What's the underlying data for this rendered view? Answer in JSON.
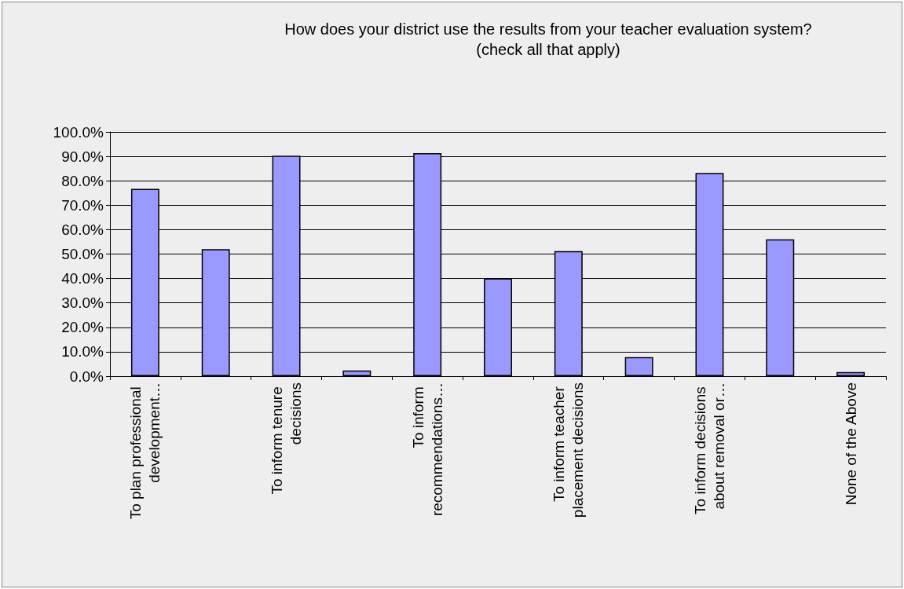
{
  "chart_data": {
    "type": "bar",
    "title": "How does your district use the results from your teacher evaluation system?\n(check all that apply)",
    "categories": [
      "To plan professional development…",
      null,
      "To inform tenure decisions",
      null,
      "To inform recommendations…",
      null,
      "To inform teacher placement decisions",
      null,
      "To inform decisions about removal or…",
      null,
      "None of the Above"
    ],
    "values": [
      76.7,
      52.0,
      90.3,
      2.3,
      91.3,
      40.0,
      51.2,
      7.8,
      83.2,
      56.0,
      1.7
    ],
    "color": "#9999ff",
    "ylim": [
      0,
      100
    ],
    "yticks": [
      {
        "value": 0,
        "label": "0.0%"
      },
      {
        "value": 10,
        "label": "10.0%"
      },
      {
        "value": 20,
        "label": "20.0%"
      },
      {
        "value": 30,
        "label": "30.0%"
      },
      {
        "value": 40,
        "label": "40.0%"
      },
      {
        "value": 50,
        "label": "50.0%"
      },
      {
        "value": 60,
        "label": "60.0%"
      },
      {
        "value": 70,
        "label": "70.0%"
      },
      {
        "value": 80,
        "label": "80.0%"
      },
      {
        "value": 90,
        "label": "90.0%"
      },
      {
        "value": 100,
        "label": "100.0%"
      }
    ],
    "grid": "y"
  }
}
